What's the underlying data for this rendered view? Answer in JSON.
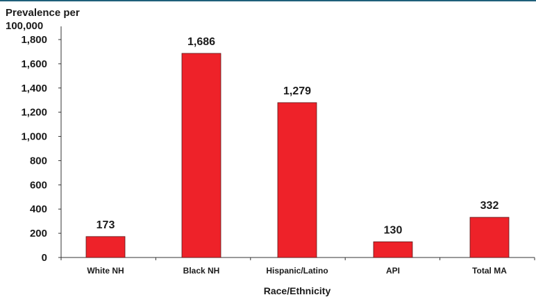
{
  "chart_data": {
    "type": "bar",
    "ylabel_line1": "Prevalence per",
    "ylabel_line2": "100,000",
    "xlabel": "Race/Ethnicity",
    "categories": [
      "White NH",
      "Black NH",
      "Hispanic/Latino",
      "API",
      "Total MA"
    ],
    "values": [
      173,
      1686,
      1279,
      130,
      332
    ],
    "value_labels": [
      "173",
      "1,686",
      "1,279",
      "130",
      "332"
    ],
    "yticks": [
      0,
      200,
      400,
      600,
      800,
      1000,
      1200,
      1400,
      1600,
      1800
    ],
    "ytick_labels": [
      "0",
      "200",
      "400",
      "600",
      "800",
      "1,000",
      "1,200",
      "1,400",
      "1,600",
      "1,800"
    ],
    "ylim": [
      0,
      1800
    ],
    "grid": false,
    "legend": "none"
  },
  "colors": {
    "bar_fill": "#ee2229",
    "bar_stroke": "#5a1a1a",
    "axis": "#333333",
    "text": "#1a1a1a",
    "top_rule": "#1f5f7a"
  }
}
